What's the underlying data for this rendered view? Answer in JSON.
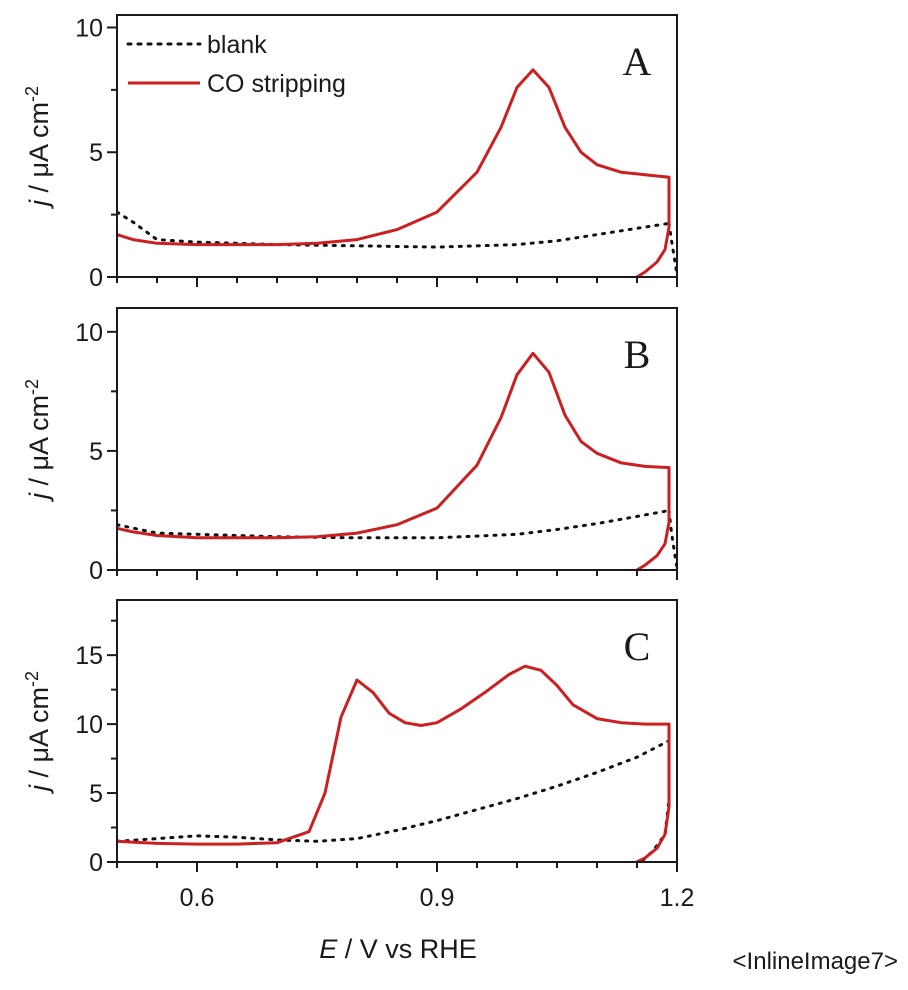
{
  "caption": "<InlineImage7>",
  "chart_data": {
    "type": "line",
    "xlabel": {
      "italic": "E",
      "rest": " / V vs RHE"
    },
    "xlim": [
      0.5,
      1.2
    ],
    "xticks": [
      0.6,
      0.9,
      1.2
    ],
    "ylabel": {
      "italic": "j",
      "rest": " / μA cm",
      "sup": "-2"
    },
    "colors": {
      "blank": "#111111",
      "co": "#cc1f1f"
    },
    "legend": {
      "position": "top-left",
      "entries": [
        {
          "label": "blank",
          "style": "dotted",
          "color": "#111111"
        },
        {
          "label": "CO stripping",
          "style": "solid",
          "color": "#cc1f1f"
        }
      ]
    },
    "panels": [
      {
        "letter": "A",
        "ylim": [
          0,
          10.5
        ],
        "yticks": [
          0,
          5,
          10
        ],
        "series": [
          {
            "name": "blank",
            "style": "dotted",
            "x": [
              0.5,
              0.52,
              0.55,
              0.6,
              0.65,
              0.7,
              0.8,
              0.9,
              1.0,
              1.05,
              1.1,
              1.15,
              1.19
            ],
            "y": [
              2.6,
              2.2,
              1.5,
              1.4,
              1.35,
              1.3,
              1.25,
              1.2,
              1.3,
              1.45,
              1.7,
              1.95,
              2.15
            ]
          },
          {
            "name": "blank (return sweep)",
            "style": "dotted",
            "x": [
              1.19,
              1.193,
              1.197,
              1.2
            ],
            "y": [
              2.15,
              1.5,
              0.7,
              0.1
            ]
          },
          {
            "name": "CO stripping",
            "style": "solid",
            "x": [
              0.5,
              0.52,
              0.55,
              0.6,
              0.65,
              0.7,
              0.75,
              0.8,
              0.85,
              0.9,
              0.95,
              0.98,
              1.0,
              1.02,
              1.04,
              1.06,
              1.08,
              1.1,
              1.13,
              1.16,
              1.19
            ],
            "y": [
              1.7,
              1.5,
              1.35,
              1.3,
              1.3,
              1.3,
              1.35,
              1.5,
              1.9,
              2.6,
              4.2,
              6.0,
              7.6,
              8.3,
              7.6,
              6.0,
              5.0,
              4.5,
              4.2,
              4.1,
              4.0
            ]
          },
          {
            "name": "CO stripping (return sweep)",
            "style": "solid",
            "x": [
              1.19,
              1.19,
              1.185,
              1.175,
              1.16,
              1.15
            ],
            "y": [
              4.0,
              2.0,
              1.1,
              0.6,
              0.2,
              0.0
            ]
          }
        ]
      },
      {
        "letter": "B",
        "ylim": [
          0,
          11
        ],
        "yticks": [
          0,
          5,
          10
        ],
        "series": [
          {
            "name": "blank",
            "style": "dotted",
            "x": [
              0.5,
              0.55,
              0.6,
              0.65,
              0.7,
              0.8,
              0.9,
              1.0,
              1.05,
              1.1,
              1.15,
              1.19
            ],
            "y": [
              1.9,
              1.55,
              1.5,
              1.45,
              1.4,
              1.35,
              1.35,
              1.5,
              1.7,
              1.95,
              2.25,
              2.5
            ]
          },
          {
            "name": "blank (return sweep)",
            "style": "dotted",
            "x": [
              1.19,
              1.193,
              1.197,
              1.2
            ],
            "y": [
              2.5,
              1.6,
              0.7,
              0.1
            ]
          },
          {
            "name": "CO stripping",
            "style": "solid",
            "x": [
              0.5,
              0.52,
              0.55,
              0.6,
              0.65,
              0.7,
              0.75,
              0.8,
              0.85,
              0.9,
              0.95,
              0.98,
              1.0,
              1.02,
              1.04,
              1.06,
              1.08,
              1.1,
              1.13,
              1.16,
              1.19
            ],
            "y": [
              1.75,
              1.6,
              1.45,
              1.35,
              1.35,
              1.35,
              1.4,
              1.55,
              1.9,
              2.6,
              4.4,
              6.4,
              8.2,
              9.1,
              8.3,
              6.5,
              5.4,
              4.9,
              4.5,
              4.35,
              4.3
            ]
          },
          {
            "name": "CO stripping (return sweep)",
            "style": "solid",
            "x": [
              1.19,
              1.19,
              1.185,
              1.175,
              1.16,
              1.15
            ],
            "y": [
              4.3,
              2.0,
              1.1,
              0.6,
              0.2,
              0.0
            ]
          }
        ]
      },
      {
        "letter": "C",
        "ylim": [
          0,
          19
        ],
        "yticks": [
          0,
          5,
          10,
          15
        ],
        "series": [
          {
            "name": "blank",
            "style": "dotted",
            "x": [
              0.5,
              0.55,
              0.6,
              0.65,
              0.7,
              0.75,
              0.8,
              0.85,
              0.9,
              0.95,
              1.0,
              1.05,
              1.1,
              1.15,
              1.19
            ],
            "y": [
              1.5,
              1.7,
              1.9,
              1.8,
              1.6,
              1.5,
              1.7,
              2.3,
              3.0,
              3.8,
              4.6,
              5.5,
              6.5,
              7.6,
              8.8
            ]
          },
          {
            "name": "blank (return sweep)",
            "style": "dotted",
            "x": [
              1.19,
              1.19,
              1.185,
              1.17,
              1.155
            ],
            "y": [
              8.8,
              4.5,
              2.0,
              0.8,
              0.0
            ]
          },
          {
            "name": "CO stripping",
            "style": "solid",
            "x": [
              0.5,
              0.55,
              0.6,
              0.65,
              0.7,
              0.74,
              0.76,
              0.78,
              0.8,
              0.82,
              0.84,
              0.86,
              0.88,
              0.9,
              0.93,
              0.96,
              0.99,
              1.01,
              1.03,
              1.05,
              1.07,
              1.1,
              1.13,
              1.16,
              1.19
            ],
            "y": [
              1.5,
              1.35,
              1.3,
              1.3,
              1.4,
              2.2,
              5.0,
              10.5,
              13.2,
              12.3,
              10.8,
              10.1,
              9.9,
              10.1,
              11.1,
              12.3,
              13.6,
              14.2,
              13.9,
              12.8,
              11.4,
              10.4,
              10.1,
              10.0,
              10.0
            ]
          },
          {
            "name": "CO stripping (return sweep)",
            "style": "solid",
            "x": [
              1.19,
              1.19,
              1.185,
              1.175,
              1.16,
              1.15
            ],
            "y": [
              10.0,
              4.0,
              2.0,
              1.0,
              0.3,
              0.0
            ]
          }
        ]
      }
    ]
  }
}
